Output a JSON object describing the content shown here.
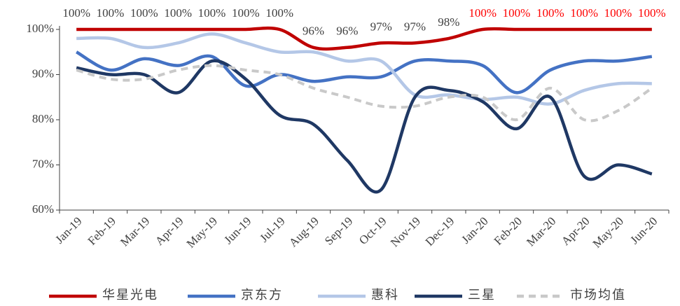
{
  "chart_data": {
    "type": "line",
    "categories": [
      "Jan-19",
      "Feb-19",
      "Mar-19",
      "Apr-19",
      "May-19",
      "Jun-19",
      "Jul-19",
      "Aug-19",
      "Sep-19",
      "Oct-19",
      "Nov-19",
      "Dec-19",
      "Jan-20",
      "Feb-20",
      "Mar-20",
      "Apr-20",
      "May-20",
      "Jun-20"
    ],
    "ylim": [
      60,
      100
    ],
    "yticks": [
      {
        "value": 60,
        "label": "60%"
      },
      {
        "value": 70,
        "label": "70%"
      },
      {
        "value": 80,
        "label": "80%"
      },
      {
        "value": 90,
        "label": "90%"
      },
      {
        "value": 100,
        "label": "100%"
      }
    ],
    "series": [
      {
        "name": "华星光电",
        "color": "#c00000",
        "dashed": false,
        "values": [
          100,
          100,
          100,
          100,
          100,
          100,
          100,
          96,
          96,
          97,
          97,
          98,
          100,
          100,
          100,
          100,
          100,
          100
        ],
        "value_labels": [
          "100%",
          "100%",
          "100%",
          "100%",
          "100%",
          "100%",
          "100%",
          "96%",
          "96%",
          "97%",
          "97%",
          "98%",
          "100%",
          "100%",
          "100%",
          "100%",
          "100%",
          "100%"
        ],
        "value_label_colors": [
          "#404040",
          "#404040",
          "#404040",
          "#404040",
          "#404040",
          "#404040",
          "#404040",
          "#404040",
          "#404040",
          "#404040",
          "#404040",
          "#404040",
          "#ff0000",
          "#ff0000",
          "#ff0000",
          "#ff0000",
          "#ff0000",
          "#ff0000"
        ]
      },
      {
        "name": "京东方",
        "color": "#4472c4",
        "dashed": false,
        "values": [
          95,
          91,
          93.5,
          92,
          94,
          87.5,
          90,
          88.5,
          89.5,
          89.5,
          93,
          93,
          92,
          86,
          91,
          93,
          93,
          94
        ]
      },
      {
        "name": "惠科",
        "color": "#b4c7e7",
        "dashed": false,
        "values": [
          98,
          98,
          96,
          97,
          99,
          97,
          95,
          95,
          93,
          93,
          85.5,
          85.5,
          84.5,
          85,
          83.5,
          86.5,
          88,
          88
        ]
      },
      {
        "name": "三星",
        "color": "#1f3864",
        "dashed": false,
        "values": [
          91.5,
          90,
          90,
          86,
          93,
          89,
          81,
          79,
          71,
          64.5,
          85,
          86.5,
          84,
          78,
          85,
          67.5,
          70,
          68
        ]
      },
      {
        "name": "市场均值",
        "color": "#c9c9c9",
        "dashed": true,
        "values": [
          91,
          89,
          89,
          91,
          92,
          91,
          90,
          87,
          85,
          83,
          83,
          85,
          85,
          80,
          87,
          80,
          82,
          87
        ]
      }
    ]
  }
}
